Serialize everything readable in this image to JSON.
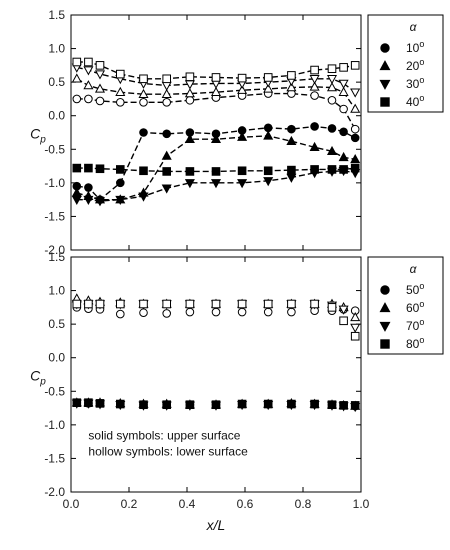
{
  "chart_data": [
    {
      "type": "scatter",
      "panel": "top",
      "xlim": [
        0.0,
        1.0
      ],
      "ylim": [
        -2.0,
        1.5
      ],
      "yticks": [
        "1.5",
        "1.0",
        "0.5",
        "0.0",
        "-0.5",
        "-1.0",
        "-1.5",
        "-2.0"
      ],
      "ylabel_main": "C",
      "ylabel_sub": "p",
      "lines_connect_points": true,
      "legend": {
        "title": "α",
        "position": "top-right",
        "entries": [
          "10°",
          "20°",
          "30°",
          "40°"
        ]
      },
      "series": [
        {
          "name": "10°",
          "marker": "circle",
          "filled": true,
          "surface": "upper",
          "x": [
            0.02,
            0.06,
            0.1,
            0.17,
            0.25,
            0.33,
            0.41,
            0.5,
            0.59,
            0.68,
            0.76,
            0.84,
            0.9,
            0.94,
            0.98
          ],
          "y": [
            -1.05,
            -1.07,
            -1.25,
            -1.0,
            -0.25,
            -0.27,
            -0.25,
            -0.27,
            -0.22,
            -0.18,
            -0.2,
            -0.16,
            -0.19,
            -0.24,
            -0.33
          ]
        },
        {
          "name": "10°",
          "marker": "circle",
          "filled": false,
          "surface": "lower",
          "x": [
            0.02,
            0.06,
            0.1,
            0.17,
            0.25,
            0.33,
            0.41,
            0.5,
            0.59,
            0.68,
            0.76,
            0.84,
            0.9,
            0.94,
            0.98
          ],
          "y": [
            0.25,
            0.25,
            0.22,
            0.2,
            0.2,
            0.2,
            0.23,
            0.27,
            0.3,
            0.33,
            0.33,
            0.3,
            0.23,
            0.1,
            -0.2
          ]
        },
        {
          "name": "20°",
          "marker": "triangle-up",
          "filled": true,
          "surface": "upper",
          "x": [
            0.02,
            0.06,
            0.1,
            0.17,
            0.25,
            0.33,
            0.41,
            0.5,
            0.59,
            0.68,
            0.76,
            0.84,
            0.9,
            0.94,
            0.98
          ],
          "y": [
            -1.15,
            -1.2,
            -1.25,
            -1.25,
            -1.15,
            -0.6,
            -0.35,
            -0.35,
            -0.32,
            -0.3,
            -0.38,
            -0.47,
            -0.53,
            -0.62,
            -0.65
          ]
        },
        {
          "name": "20°",
          "marker": "triangle-up",
          "filled": false,
          "surface": "lower",
          "x": [
            0.02,
            0.06,
            0.1,
            0.17,
            0.25,
            0.33,
            0.41,
            0.5,
            0.59,
            0.68,
            0.76,
            0.84,
            0.9,
            0.94,
            0.98
          ],
          "y": [
            0.55,
            0.45,
            0.4,
            0.35,
            0.32,
            0.32,
            0.33,
            0.35,
            0.38,
            0.4,
            0.42,
            0.43,
            0.42,
            0.35,
            0.1
          ]
        },
        {
          "name": "30°",
          "marker": "triangle-down",
          "filled": true,
          "surface": "upper",
          "x": [
            0.02,
            0.06,
            0.1,
            0.17,
            0.25,
            0.33,
            0.41,
            0.5,
            0.59,
            0.68,
            0.76,
            0.84,
            0.9,
            0.94,
            0.98
          ],
          "y": [
            -1.25,
            -1.25,
            -1.27,
            -1.25,
            -1.2,
            -1.08,
            -1.0,
            -1.0,
            -1.0,
            -0.97,
            -0.92,
            -0.85,
            -0.83,
            -0.82,
            -0.85
          ]
        },
        {
          "name": "30°",
          "marker": "triangle-down",
          "filled": false,
          "surface": "lower",
          "x": [
            0.02,
            0.06,
            0.1,
            0.17,
            0.25,
            0.33,
            0.41,
            0.5,
            0.59,
            0.68,
            0.76,
            0.84,
            0.9,
            0.94,
            0.98
          ],
          "y": [
            0.72,
            0.68,
            0.62,
            0.55,
            0.48,
            0.45,
            0.47,
            0.48,
            0.48,
            0.5,
            0.52,
            0.55,
            0.55,
            0.48,
            0.35
          ]
        },
        {
          "name": "40°",
          "marker": "square",
          "filled": true,
          "surface": "upper",
          "x": [
            0.02,
            0.06,
            0.1,
            0.17,
            0.25,
            0.33,
            0.41,
            0.5,
            0.59,
            0.68,
            0.76,
            0.84,
            0.9,
            0.94,
            0.98
          ],
          "y": [
            -0.78,
            -0.78,
            -0.79,
            -0.8,
            -0.82,
            -0.83,
            -0.83,
            -0.83,
            -0.82,
            -0.82,
            -0.81,
            -0.8,
            -0.8,
            -0.8,
            -0.78
          ]
        },
        {
          "name": "40°",
          "marker": "square",
          "filled": false,
          "surface": "lower",
          "x": [
            0.02,
            0.06,
            0.1,
            0.17,
            0.25,
            0.33,
            0.41,
            0.5,
            0.59,
            0.68,
            0.76,
            0.84,
            0.9,
            0.94,
            0.98
          ],
          "y": [
            0.8,
            0.8,
            0.75,
            0.62,
            0.55,
            0.55,
            0.58,
            0.57,
            0.56,
            0.57,
            0.6,
            0.68,
            0.7,
            0.72,
            0.75
          ]
        }
      ]
    },
    {
      "type": "scatter",
      "panel": "bottom",
      "xlim": [
        0.0,
        1.0
      ],
      "ylim": [
        -2.0,
        1.5
      ],
      "xticks": [
        "0.0",
        "0.2",
        "0.4",
        "0.6",
        "0.8",
        "1.0"
      ],
      "yticks": [
        "1.5",
        "1.0",
        "0.5",
        "0.0",
        "-0.5",
        "-1.0",
        "-1.5",
        "-2.0"
      ],
      "xlabel": "x/L",
      "ylabel_main": "C",
      "ylabel_sub": "p",
      "lines_connect_points": false,
      "legend": {
        "title": "α",
        "position": "top-right",
        "entries": [
          "50°",
          "60°",
          "70°",
          "80°"
        ]
      },
      "annotations": [
        "solid symbols: upper surface",
        "hollow symbols: lower surface"
      ],
      "series": [
        {
          "name": "50°",
          "marker": "circle",
          "filled": true,
          "surface": "upper",
          "x": [
            0.02,
            0.06,
            0.1,
            0.17,
            0.25,
            0.33,
            0.41,
            0.5,
            0.59,
            0.68,
            0.76,
            0.84,
            0.9,
            0.94,
            0.98
          ],
          "y": [
            -0.67,
            -0.68,
            -0.68,
            -0.69,
            -0.7,
            -0.7,
            -0.7,
            -0.7,
            -0.69,
            -0.69,
            -0.69,
            -0.69,
            -0.7,
            -0.71,
            -0.72
          ]
        },
        {
          "name": "50°",
          "marker": "circle",
          "filled": false,
          "surface": "lower",
          "x": [
            0.02,
            0.06,
            0.1,
            0.17,
            0.25,
            0.33,
            0.41,
            0.5,
            0.59,
            0.68,
            0.76,
            0.84,
            0.9,
            0.94,
            0.98
          ],
          "y": [
            0.75,
            0.73,
            0.72,
            0.65,
            0.67,
            0.66,
            0.68,
            0.68,
            0.68,
            0.68,
            0.68,
            0.7,
            0.7,
            0.72,
            0.7
          ]
        },
        {
          "name": "60°",
          "marker": "triangle-up",
          "filled": true,
          "surface": "upper",
          "x": [
            0.02,
            0.06,
            0.1,
            0.17,
            0.25,
            0.33,
            0.41,
            0.5,
            0.59,
            0.68,
            0.76,
            0.84,
            0.9,
            0.94,
            0.98
          ],
          "y": [
            -0.67,
            -0.67,
            -0.67,
            -0.68,
            -0.69,
            -0.69,
            -0.7,
            -0.7,
            -0.69,
            -0.69,
            -0.68,
            -0.69,
            -0.7,
            -0.71,
            -0.72
          ]
        },
        {
          "name": "60°",
          "marker": "triangle-up",
          "filled": false,
          "surface": "lower",
          "x": [
            0.02,
            0.06,
            0.1,
            0.17,
            0.25,
            0.33,
            0.41,
            0.5,
            0.59,
            0.68,
            0.76,
            0.84,
            0.9,
            0.94,
            0.98
          ],
          "y": [
            0.88,
            0.85,
            0.83,
            0.82,
            0.8,
            0.8,
            0.8,
            0.8,
            0.8,
            0.8,
            0.8,
            0.8,
            0.8,
            0.75,
            0.6
          ]
        },
        {
          "name": "70°",
          "marker": "triangle-down",
          "filled": true,
          "surface": "upper",
          "x": [
            0.02,
            0.06,
            0.1,
            0.17,
            0.25,
            0.33,
            0.41,
            0.5,
            0.59,
            0.68,
            0.76,
            0.84,
            0.9,
            0.94,
            0.98
          ],
          "y": [
            -0.68,
            -0.68,
            -0.69,
            -0.7,
            -0.71,
            -0.71,
            -0.71,
            -0.71,
            -0.7,
            -0.7,
            -0.7,
            -0.7,
            -0.71,
            -0.72,
            -0.73
          ]
        },
        {
          "name": "70°",
          "marker": "triangle-down",
          "filled": false,
          "surface": "lower",
          "x": [
            0.02,
            0.06,
            0.1,
            0.17,
            0.25,
            0.33,
            0.41,
            0.5,
            0.59,
            0.68,
            0.76,
            0.84,
            0.9,
            0.94,
            0.98
          ],
          "y": [
            0.8,
            0.8,
            0.8,
            0.8,
            0.8,
            0.8,
            0.8,
            0.8,
            0.8,
            0.8,
            0.8,
            0.8,
            0.78,
            0.72,
            0.45
          ]
        },
        {
          "name": "80°",
          "marker": "square",
          "filled": true,
          "surface": "upper",
          "x": [
            0.02,
            0.06,
            0.1,
            0.17,
            0.25,
            0.33,
            0.41,
            0.5,
            0.59,
            0.68,
            0.76,
            0.84,
            0.9,
            0.94,
            0.98
          ],
          "y": [
            -0.67,
            -0.67,
            -0.68,
            -0.69,
            -0.7,
            -0.7,
            -0.7,
            -0.7,
            -0.69,
            -0.69,
            -0.69,
            -0.69,
            -0.7,
            -0.71,
            -0.71
          ]
        },
        {
          "name": "80°",
          "marker": "square",
          "filled": false,
          "surface": "lower",
          "x": [
            0.02,
            0.06,
            0.1,
            0.17,
            0.25,
            0.33,
            0.41,
            0.5,
            0.59,
            0.68,
            0.76,
            0.84,
            0.9,
            0.94,
            0.98
          ],
          "y": [
            0.8,
            0.8,
            0.8,
            0.8,
            0.8,
            0.8,
            0.8,
            0.8,
            0.8,
            0.8,
            0.8,
            0.8,
            0.75,
            0.55,
            0.32
          ]
        }
      ]
    }
  ]
}
